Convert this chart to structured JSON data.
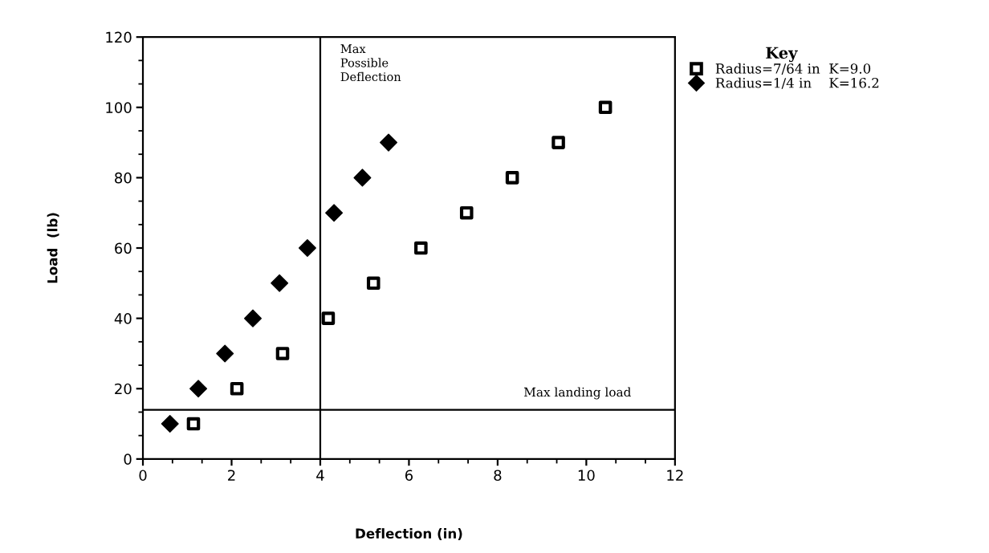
{
  "chart_data": {
    "type": "scatter",
    "xlabel": "Deflection (in)",
    "ylabel": "Load  (lb)",
    "legend_title": "Key",
    "legend": "top right",
    "xlim": [
      0,
      12
    ],
    "ylim": [
      0,
      120
    ],
    "xticks": [
      0,
      2,
      4,
      6,
      8,
      10,
      12
    ],
    "yticks": [
      0,
      20,
      40,
      60,
      80,
      100,
      120
    ],
    "grid": false,
    "series": [
      {
        "name": "Radius=7/64 in  K=9.0",
        "color": "#000000",
        "marker": "square",
        "x": [
          1.14,
          2.12,
          3.15,
          4.18,
          5.2,
          6.27,
          7.3,
          8.33,
          9.37,
          10.43
        ],
        "values": [
          10,
          20,
          30,
          40,
          50,
          60,
          70,
          80,
          90,
          100
        ]
      },
      {
        "name": "Radius=1/4 in    K=16.2",
        "color": "#000000",
        "marker": "diamond",
        "x": [
          0.61,
          1.25,
          1.85,
          2.48,
          3.08,
          3.71,
          4.31,
          4.95,
          5.54
        ],
        "values": [
          10,
          20,
          30,
          40,
          50,
          60,
          70,
          80,
          90
        ]
      }
    ],
    "ref_lines": [
      {
        "axis": "x",
        "value": 4,
        "label": "Max\nPossible\nDeflection",
        "color": "#000000"
      },
      {
        "axis": "y",
        "value": 14,
        "label": "Max landing load",
        "color": "#000000"
      }
    ]
  }
}
